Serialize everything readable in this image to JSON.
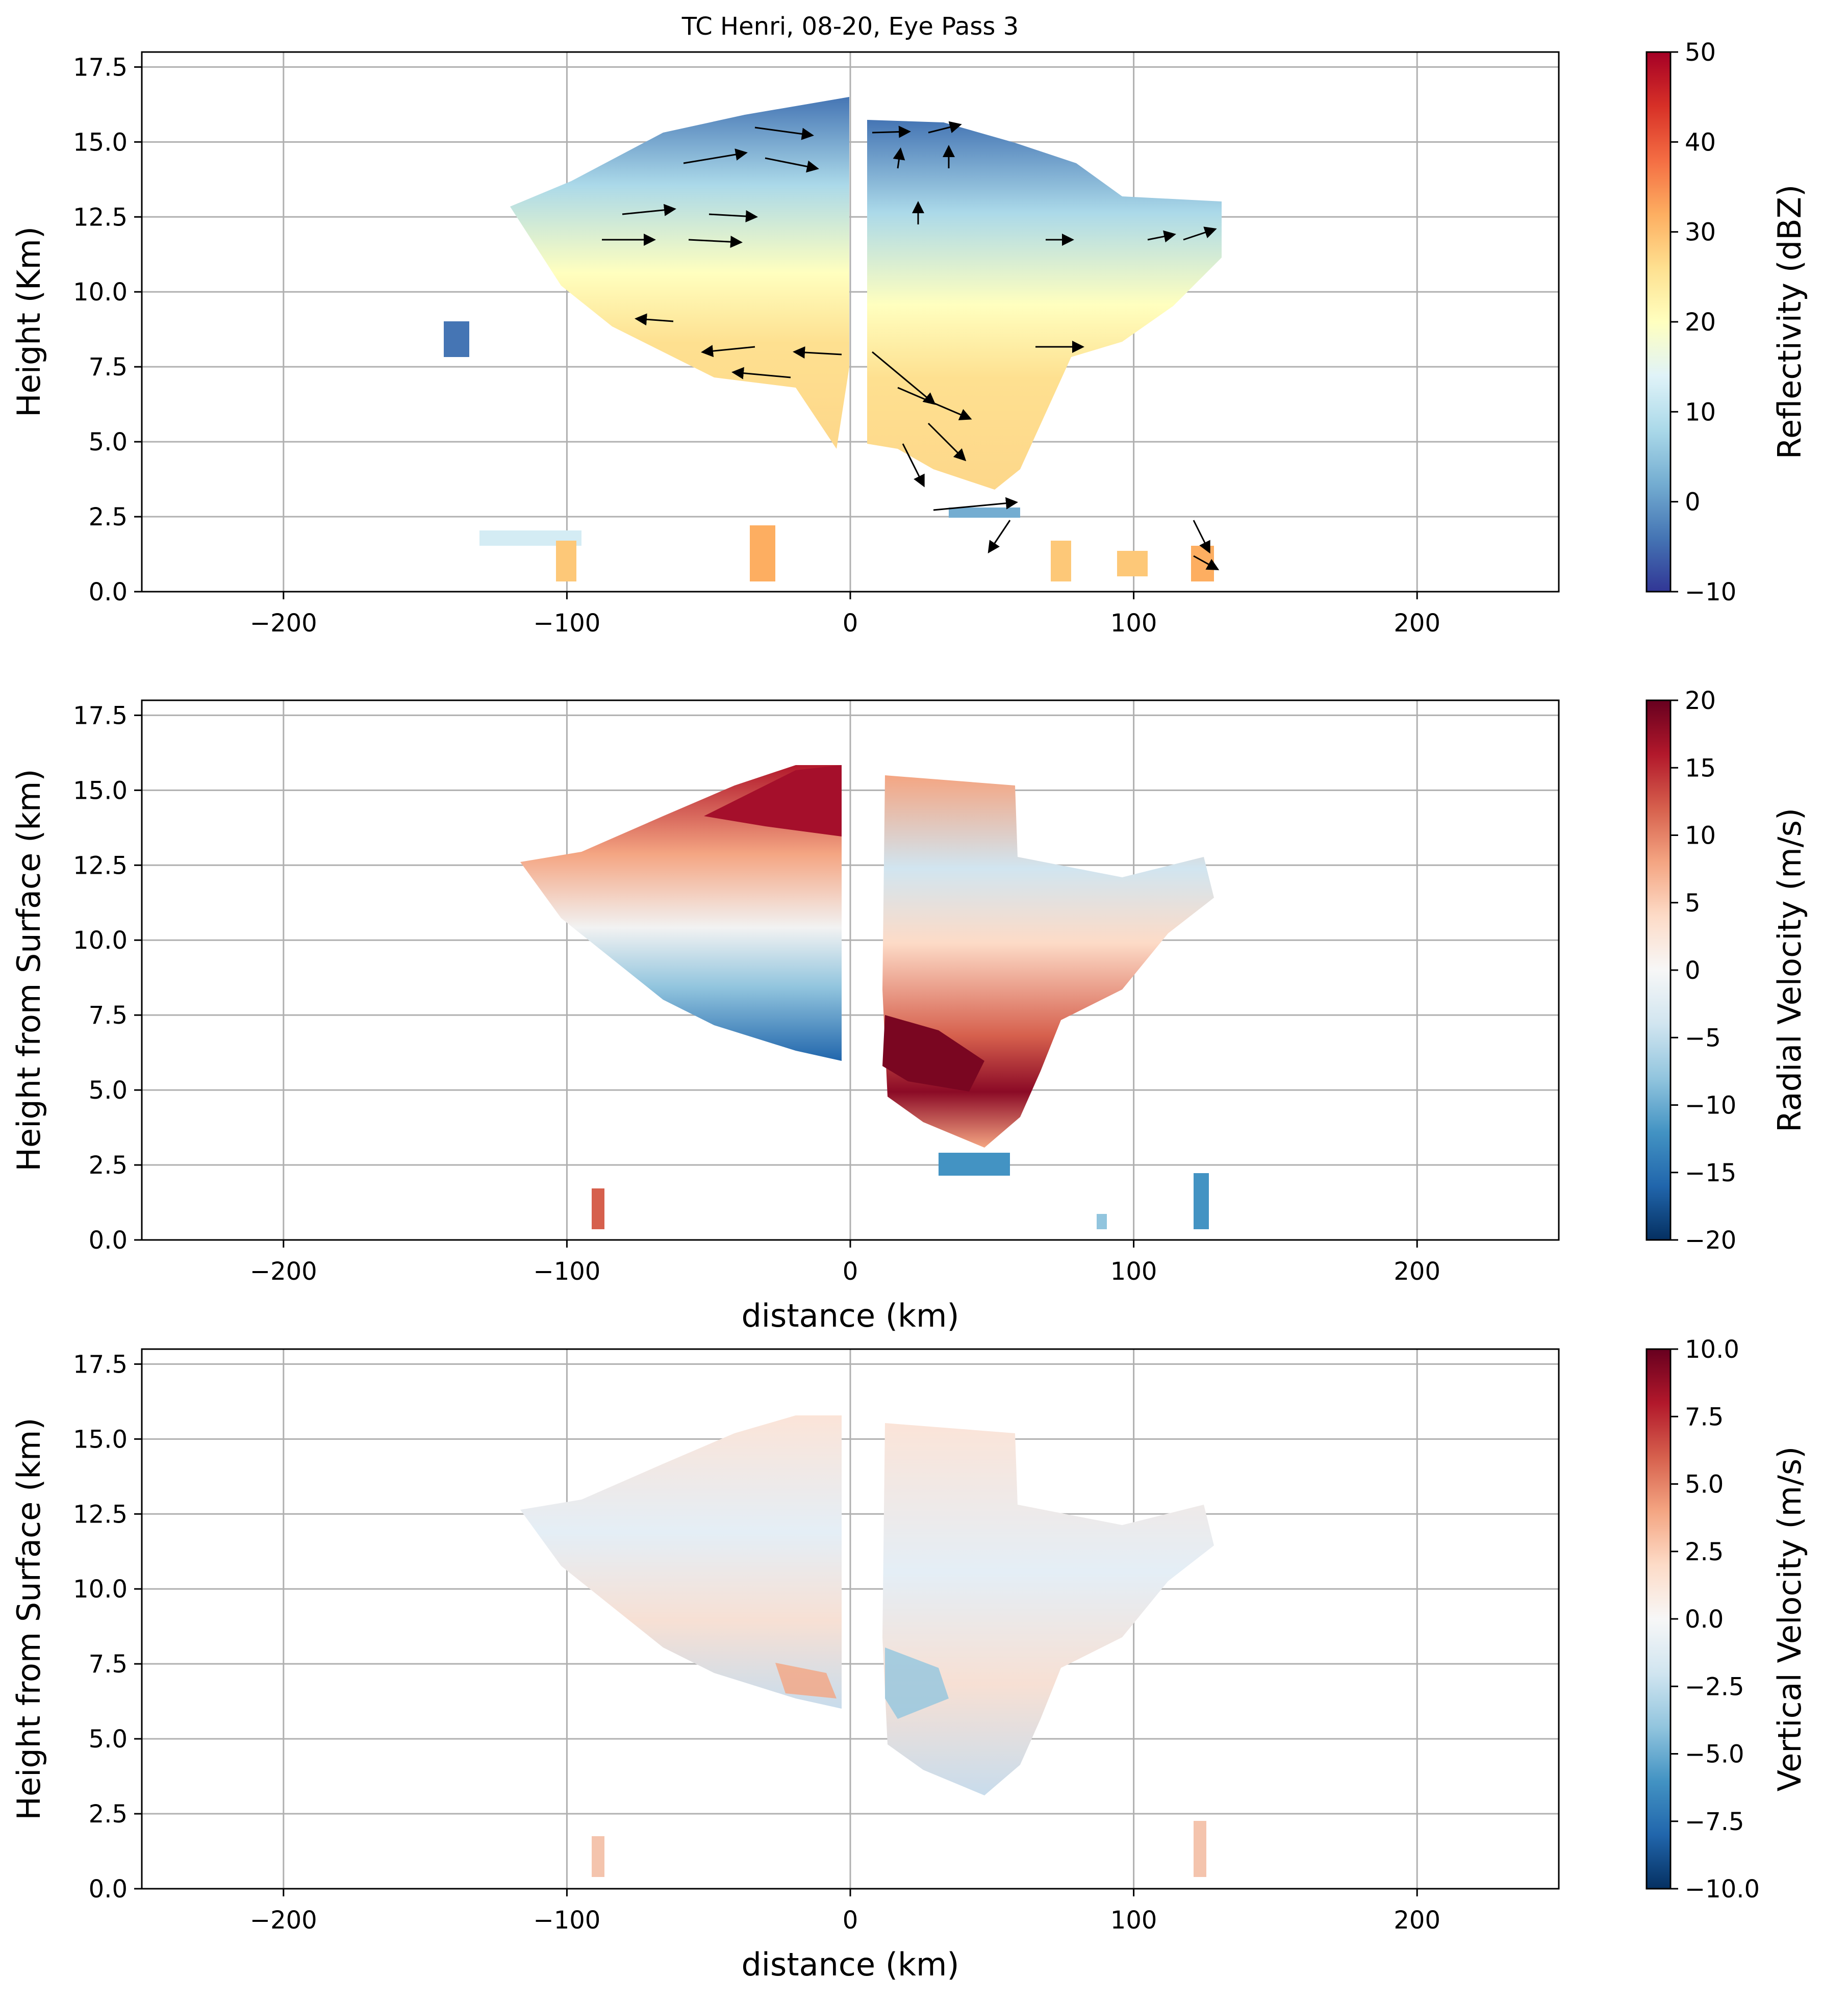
{
  "figure": {
    "title": "TC Henri, 08-20, Eye Pass 3"
  },
  "chart_data": [
    {
      "type": "heatmap",
      "title": "TC Henri, 08-20, Eye Pass 3",
      "xlabel": "",
      "ylabel": "Height (Km)",
      "xlim": [
        -250,
        250
      ],
      "ylim": [
        0,
        18
      ],
      "xticks": [
        -200,
        -100,
        0,
        100,
        200
      ],
      "xtick_labels": [
        "−200",
        "−100",
        "0",
        "100",
        "200"
      ],
      "yticks": [
        0,
        2.5,
        5,
        7.5,
        10,
        12.5,
        15,
        17.5
      ],
      "ytick_labels": [
        "0.0",
        "2.5",
        "5.0",
        "7.5",
        "10.0",
        "12.5",
        "15.0",
        "17.5"
      ],
      "grid": true,
      "colormap": "RdYlBu_r",
      "colorbar": {
        "label": "Reflectivity (dBZ)",
        "range": [
          -10,
          50
        ],
        "ticks": [
          -10,
          0,
          10,
          20,
          30,
          40,
          50
        ],
        "tick_labels": [
          "−10",
          "0",
          "10",
          "20",
          "30",
          "40",
          "50"
        ]
      },
      "field": "reflectivity",
      "has_wind_vectors": true
    },
    {
      "type": "heatmap",
      "title": "",
      "xlabel": "distance (km)",
      "ylabel": "Height from Surface (km)",
      "xlim": [
        -250,
        250
      ],
      "ylim": [
        0,
        18
      ],
      "xticks": [
        -200,
        -100,
        0,
        100,
        200
      ],
      "xtick_labels": [
        "−200",
        "−100",
        "0",
        "100",
        "200"
      ],
      "yticks": [
        0,
        2.5,
        5,
        7.5,
        10,
        12.5,
        15,
        17.5
      ],
      "ytick_labels": [
        "0.0",
        "2.5",
        "5.0",
        "7.5",
        "10.0",
        "12.5",
        "15.0",
        "17.5"
      ],
      "grid": true,
      "colormap": "RdBu_r",
      "colorbar": {
        "label": "Radial Velocity (m/s)",
        "range": [
          -20,
          20
        ],
        "ticks": [
          -20,
          -15,
          -10,
          -5,
          0,
          5,
          10,
          15,
          20
        ],
        "tick_labels": [
          "−20",
          "−15",
          "−10",
          "−5",
          "0",
          "5",
          "10",
          "15",
          "20"
        ]
      },
      "field": "radial_velocity"
    },
    {
      "type": "heatmap",
      "title": "",
      "xlabel": "distance (km)",
      "ylabel": "Height from Surface (km)",
      "xlim": [
        -250,
        250
      ],
      "ylim": [
        0,
        18
      ],
      "xticks": [
        -200,
        -100,
        0,
        100,
        200
      ],
      "xtick_labels": [
        "−200",
        "−100",
        "0",
        "100",
        "200"
      ],
      "yticks": [
        0,
        2.5,
        5,
        7.5,
        10,
        12.5,
        15,
        17.5
      ],
      "ytick_labels": [
        "0.0",
        "2.5",
        "5.0",
        "7.5",
        "10.0",
        "12.5",
        "15.0",
        "17.5"
      ],
      "grid": true,
      "colormap": "RdBu_r",
      "colorbar": {
        "label": "Vertical Velocity (m/s)",
        "range": [
          -10,
          10
        ],
        "ticks": [
          -10,
          -7.5,
          -5,
          -2.5,
          0,
          2.5,
          5,
          7.5,
          10
        ],
        "tick_labels": [
          "−10.0",
          "−7.5",
          "−5.0",
          "−2.5",
          "0.0",
          "2.5",
          "5.0",
          "7.5",
          "10.0"
        ]
      },
      "field": "vertical_velocity"
    }
  ],
  "colors": {
    "rdylbu": [
      "#313695",
      "#4575b4",
      "#74add1",
      "#abd9e9",
      "#e0f3f8",
      "#ffffbf",
      "#fee090",
      "#fdae61",
      "#f46d43",
      "#d73027",
      "#a50026"
    ],
    "rdbu": [
      "#053061",
      "#2166ac",
      "#4393c3",
      "#92c5de",
      "#d1e5f0",
      "#f7f7f7",
      "#fddbc7",
      "#f4a582",
      "#d6604d",
      "#b2182b",
      "#67001f"
    ],
    "grid": "#b0b0b0"
  }
}
